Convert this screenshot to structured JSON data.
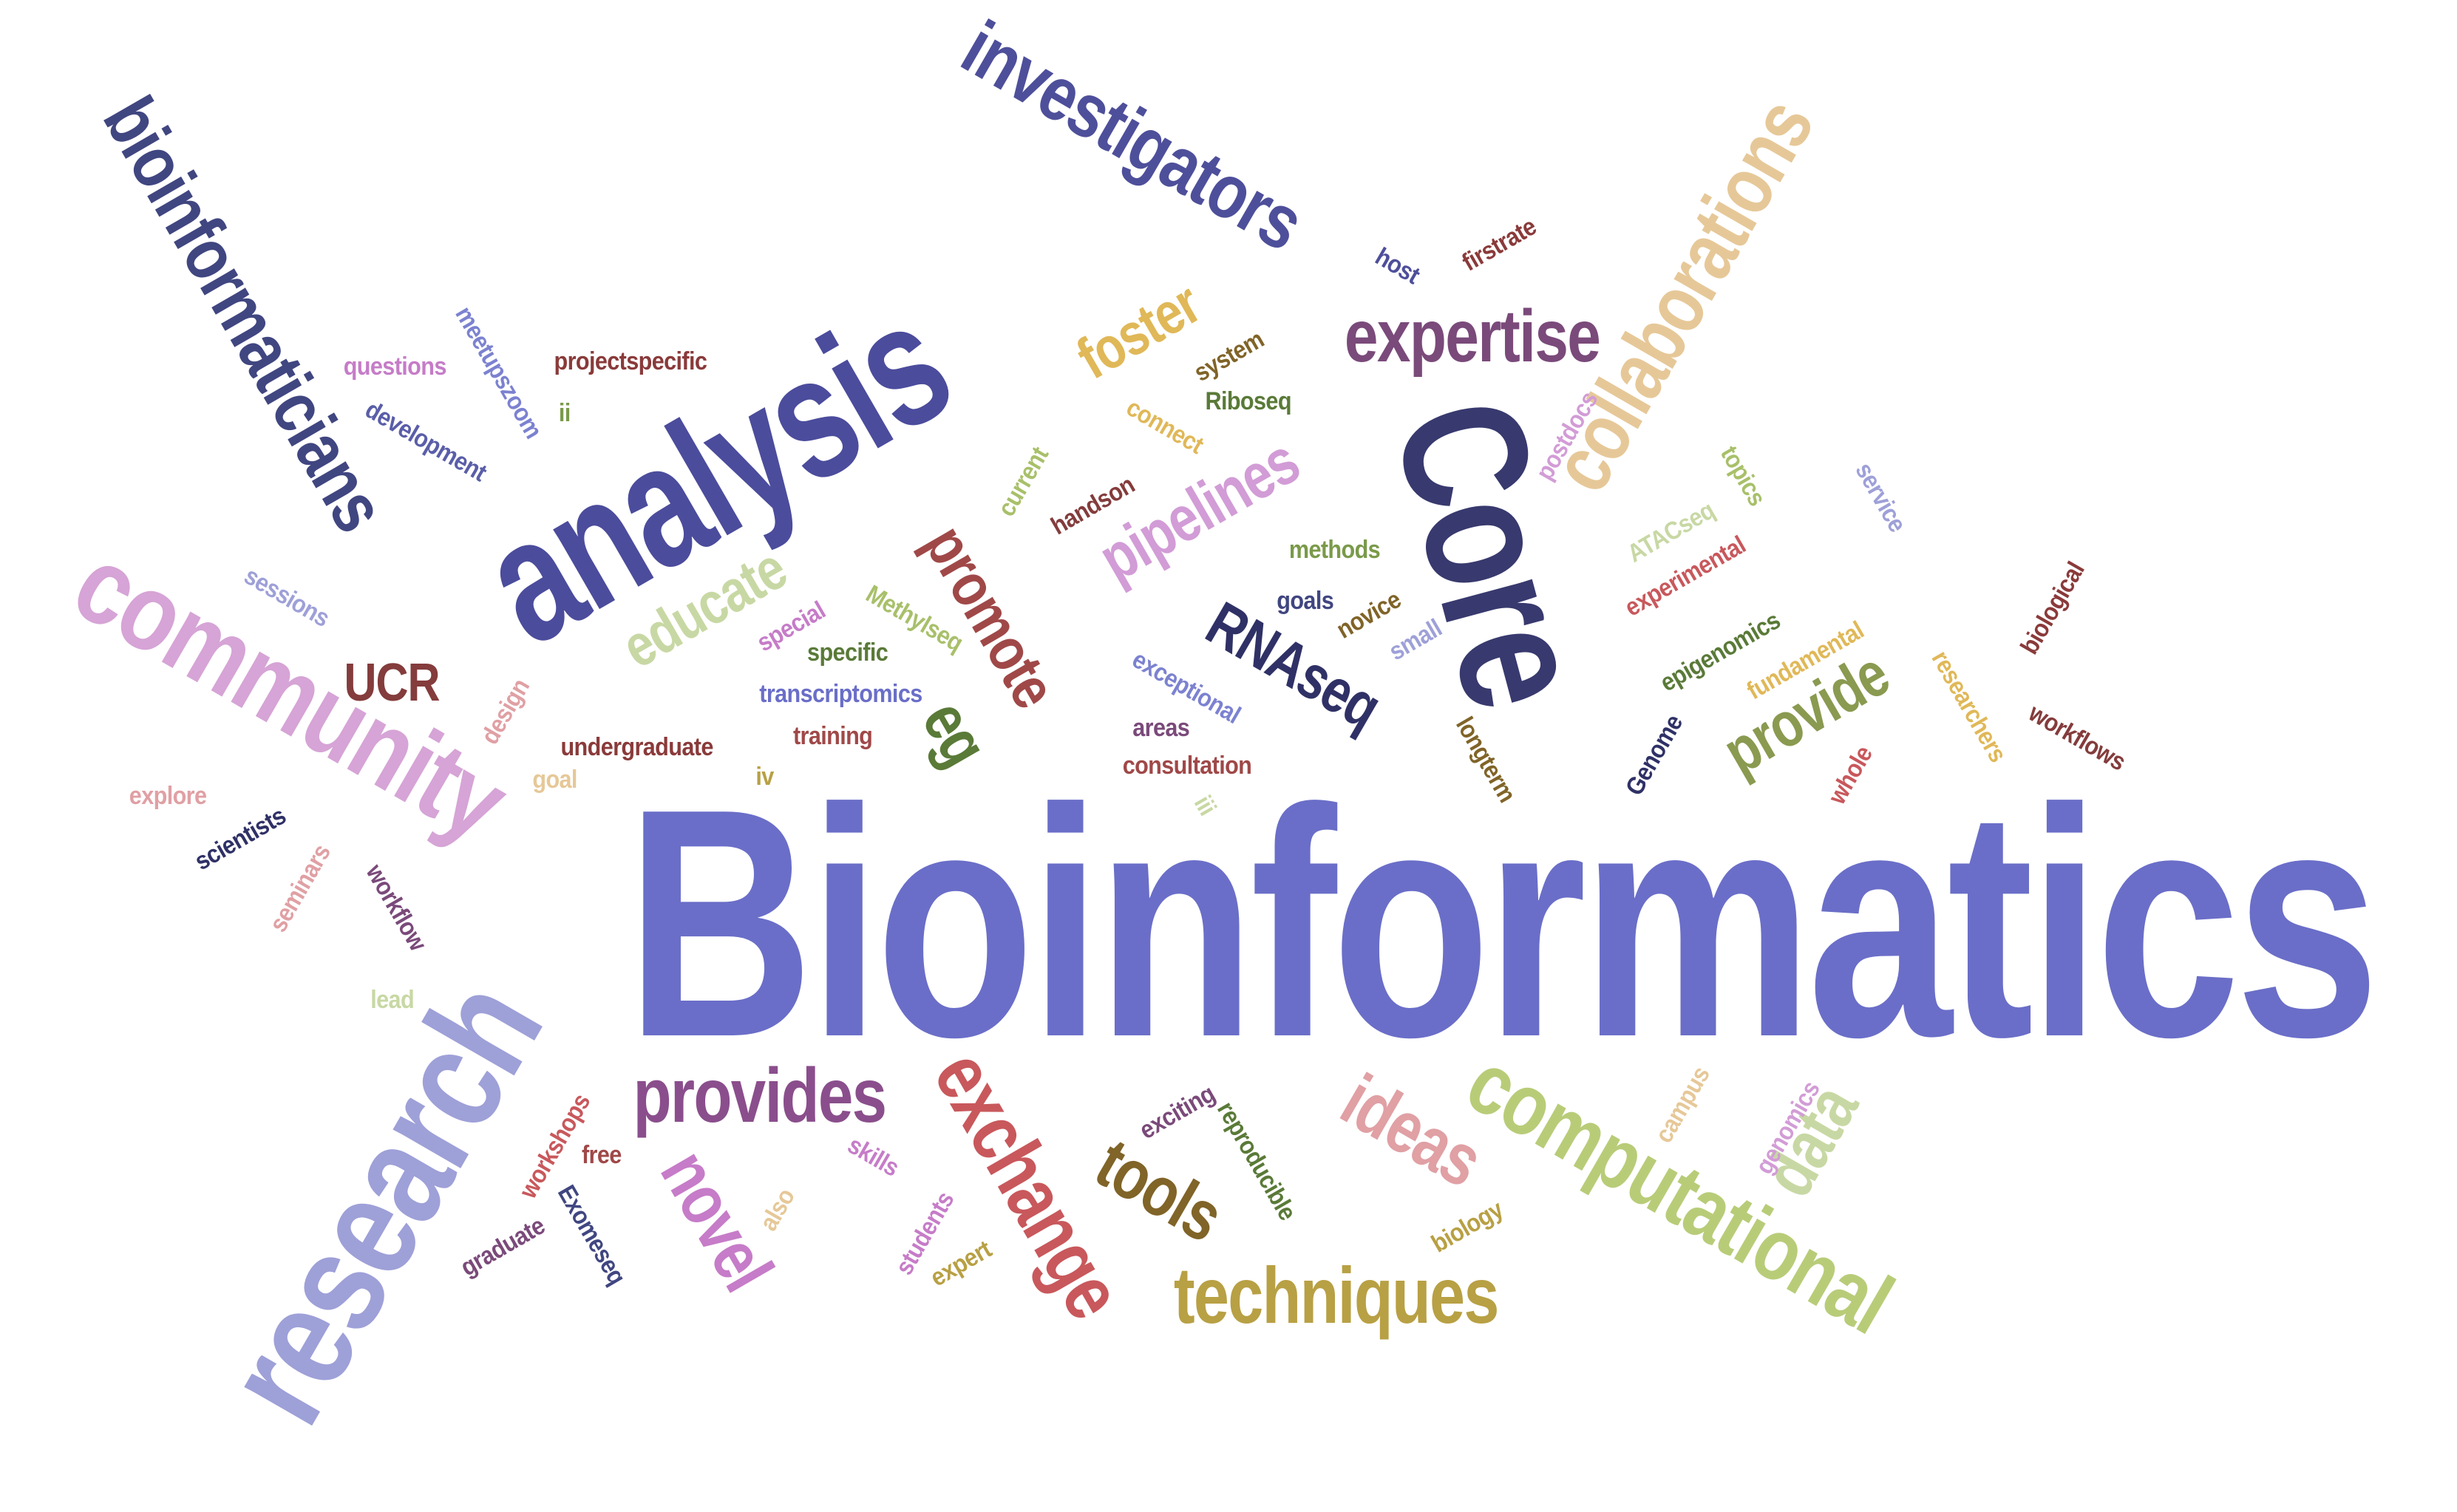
{
  "words": [
    {
      "text": "Bioinformatics",
      "color": "#6a6ec8",
      "rotation": 0
    },
    {
      "text": "analysis",
      "color": "#4b4c9c",
      "rotation": -30
    },
    {
      "text": "Core",
      "color": "#38396e",
      "rotation": 75
    },
    {
      "text": "research",
      "color": "#9ea0d8",
      "rotation": -60
    },
    {
      "text": "community",
      "color": "#d6a4d6",
      "rotation": 30
    },
    {
      "text": "bioinformaticians",
      "color": "#404680",
      "rotation": 60
    },
    {
      "text": "investigators",
      "color": "#4e4f9a",
      "rotation": 30
    },
    {
      "text": "computational",
      "color": "#b8cc78",
      "rotation": 30
    },
    {
      "text": "collaborations",
      "color": "#e6c898",
      "rotation": -60
    },
    {
      "text": "exchange",
      "color": "#c8585c",
      "rotation": 60
    },
    {
      "text": "techniques",
      "color": "#b8a044",
      "rotation": 0
    },
    {
      "text": "provides",
      "color": "#8a4e8c",
      "rotation": 0
    },
    {
      "text": "expertise",
      "color": "#7a4a7a",
      "rotation": 0
    },
    {
      "text": "pipelines",
      "color": "#d29cd6",
      "rotation": -30
    },
    {
      "text": "educate",
      "color": "#c8d8a4",
      "rotation": -30
    },
    {
      "text": "promote",
      "color": "#a04848",
      "rotation": 60
    },
    {
      "text": "foster",
      "color": "#e0b858",
      "rotation": -30
    },
    {
      "text": "provide",
      "color": "#8a9a50",
      "rotation": -30
    },
    {
      "text": "ideas",
      "color": "#e0a0a4",
      "rotation": 30
    },
    {
      "text": "novel",
      "color": "#c67cc8",
      "rotation": 60
    },
    {
      "text": "tools",
      "color": "#806428",
      "rotation": 30
    },
    {
      "text": "RNAseq",
      "color": "#2f3166",
      "rotation": 30
    },
    {
      "text": "data",
      "color": "#c8d8a4",
      "rotation": -60
    },
    {
      "text": "eg",
      "color": "#5a7a38",
      "rotation": 60
    },
    {
      "text": "UCR",
      "color": "#843c3c",
      "rotation": 0
    },
    {
      "text": "questions",
      "color": "#c67cc8",
      "rotation": 0
    },
    {
      "text": "meetupszoom",
      "color": "#7c82d0",
      "rotation": 60
    },
    {
      "text": "projectspecific",
      "color": "#8a3a3a",
      "rotation": 0
    },
    {
      "text": "development",
      "color": "#5a5ea8",
      "rotation": 30
    },
    {
      "text": "ii",
      "color": "#7a9a4a",
      "rotation": 0
    },
    {
      "text": "system",
      "color": "#806428",
      "rotation": -30
    },
    {
      "text": "connect",
      "color": "#e0b858",
      "rotation": 30
    },
    {
      "text": "Riboseq",
      "color": "#5a7a38",
      "rotation": 0
    },
    {
      "text": "current",
      "color": "#a8c06a",
      "rotation": -60
    },
    {
      "text": "handson",
      "color": "#843c3c",
      "rotation": -30
    },
    {
      "text": "methods",
      "color": "#7a9a4a",
      "rotation": 0
    },
    {
      "text": "goals",
      "color": "#404680",
      "rotation": 0
    },
    {
      "text": "novice",
      "color": "#806428",
      "rotation": -30
    },
    {
      "text": "small",
      "color": "#9ea0d8",
      "rotation": -30
    },
    {
      "text": "Methylseq",
      "color": "#a8c06a",
      "rotation": 30
    },
    {
      "text": "special",
      "color": "#c67cc8",
      "rotation": -30
    },
    {
      "text": "specific",
      "color": "#5a7a38",
      "rotation": 0
    },
    {
      "text": "transcriptomics",
      "color": "#6a6ec8",
      "rotation": 0
    },
    {
      "text": "exceptional",
      "color": "#7c82d0",
      "rotation": 30
    },
    {
      "text": "areas",
      "color": "#7a4a7a",
      "rotation": 0
    },
    {
      "text": "training",
      "color": "#a04848",
      "rotation": 0
    },
    {
      "text": "consultation",
      "color": "#a04848",
      "rotation": 0
    },
    {
      "text": "undergraduate",
      "color": "#8a3a3a",
      "rotation": 0
    },
    {
      "text": "design",
      "color": "#e0a0a4",
      "rotation": -60
    },
    {
      "text": "goal",
      "color": "#e6c898",
      "rotation": 0
    },
    {
      "text": "iv",
      "color": "#b8a044",
      "rotation": 0
    },
    {
      "text": "iii",
      "color": "#c8d8a4",
      "rotation": 60
    },
    {
      "text": "sessions",
      "color": "#9ea0d8",
      "rotation": 30
    },
    {
      "text": "explore",
      "color": "#e0a0a4",
      "rotation": 0
    },
    {
      "text": "scientists",
      "color": "#2f3166",
      "rotation": -30
    },
    {
      "text": "seminars",
      "color": "#e0a0a4",
      "rotation": -60
    },
    {
      "text": "workflow",
      "color": "#7a4a7a",
      "rotation": 60
    },
    {
      "text": "lead",
      "color": "#c8d8a4",
      "rotation": 0
    },
    {
      "text": "workshops",
      "color": "#c8585c",
      "rotation": -60
    },
    {
      "text": "free",
      "color": "#a04848",
      "rotation": 0
    },
    {
      "text": "graduate",
      "color": "#7a4a7a",
      "rotation": -30
    },
    {
      "text": "Exomeseq",
      "color": "#404680",
      "rotation": 60
    },
    {
      "text": "also",
      "color": "#e6c898",
      "rotation": -60
    },
    {
      "text": "skills",
      "color": "#c67cc8",
      "rotation": 30
    },
    {
      "text": "students",
      "color": "#c67cc8",
      "rotation": -60
    },
    {
      "text": "expert",
      "color": "#b8a044",
      "rotation": -30
    },
    {
      "text": "exciting",
      "color": "#7a4a7a",
      "rotation": -30
    },
    {
      "text": "reproducible",
      "color": "#5a7a38",
      "rotation": 60
    },
    {
      "text": "biology",
      "color": "#b8a044",
      "rotation": -30
    },
    {
      "text": "campus",
      "color": "#e6c898",
      "rotation": -60
    },
    {
      "text": "genomics",
      "color": "#d29cd6",
      "rotation": -60
    },
    {
      "text": "host",
      "color": "#4e4f9a",
      "rotation": 30
    },
    {
      "text": "firstrate",
      "color": "#8a3a3a",
      "rotation": -30
    },
    {
      "text": "postdocs",
      "color": "#d29cd6",
      "rotation": -60
    },
    {
      "text": "topics",
      "color": "#a8c06a",
      "rotation": 60
    },
    {
      "text": "ATACseq",
      "color": "#c8d8a4",
      "rotation": -30
    },
    {
      "text": "experimental",
      "color": "#c8585c",
      "rotation": -30
    },
    {
      "text": "epigenomics",
      "color": "#5a7a38",
      "rotation": -30
    },
    {
      "text": "fundamental",
      "color": "#e0b858",
      "rotation": -30
    },
    {
      "text": "longterm",
      "color": "#806428",
      "rotation": 60
    },
    {
      "text": "Genome",
      "color": "#2f3166",
      "rotation": -60
    },
    {
      "text": "whole",
      "color": "#c8585c",
      "rotation": -60
    },
    {
      "text": "researchers",
      "color": "#e0b858",
      "rotation": 60
    },
    {
      "text": "workflows",
      "color": "#843c3c",
      "rotation": 30
    },
    {
      "text": "biological",
      "color": "#8a3a3a",
      "rotation": -60
    },
    {
      "text": "service",
      "color": "#9ea0d8",
      "rotation": 60
    }
  ]
}
